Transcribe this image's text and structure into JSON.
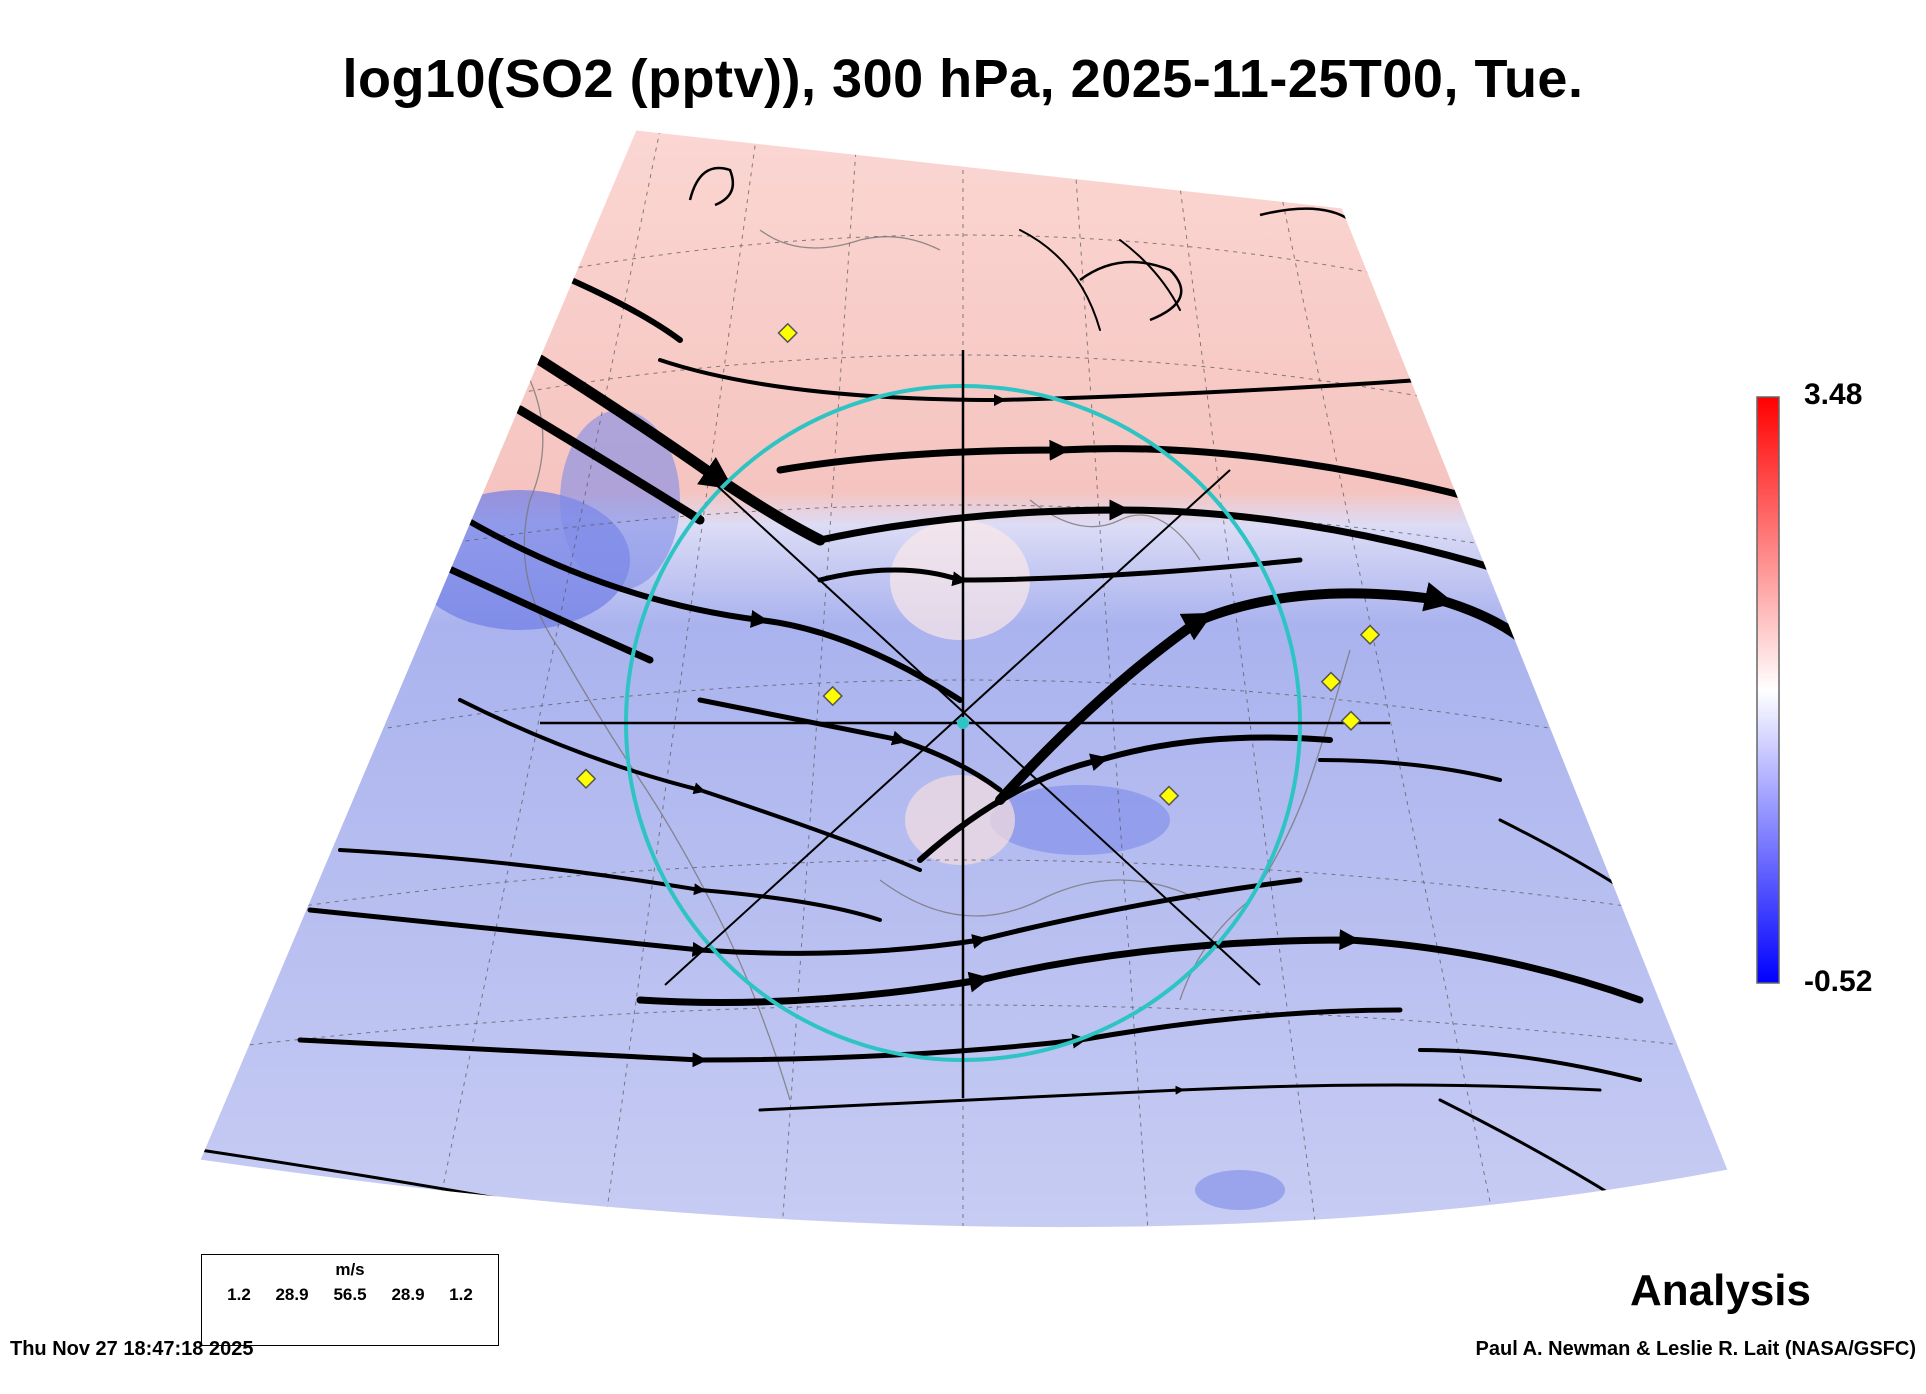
{
  "title": "log10(SO2 (pptv)), 300 hPa, 2025-11-25T00, Tue.",
  "colorbar": {
    "max_label": "3.48",
    "min_label": "-0.52",
    "colors": {
      "high": "#ff0000",
      "mid": "#ffffff",
      "low": "#0000ff"
    }
  },
  "legend": {
    "unit": "m/s",
    "speeds": [
      "1.2",
      "28.9",
      "56.5",
      "28.9",
      "1.2"
    ]
  },
  "mode_label": "Analysis",
  "timestamp": "Thu Nov 27 18:47:18 2025",
  "credit": "Paul A. Newman & Leslie R. Lait (NASA/GSFC)",
  "map": {
    "fill_colors": {
      "north": "#f6c9c5",
      "south": "#c6cbf2",
      "strong_blue": "#6f7ee6"
    },
    "circle_color": "#2ec4c4",
    "marker_color": "#ffff00"
  }
}
